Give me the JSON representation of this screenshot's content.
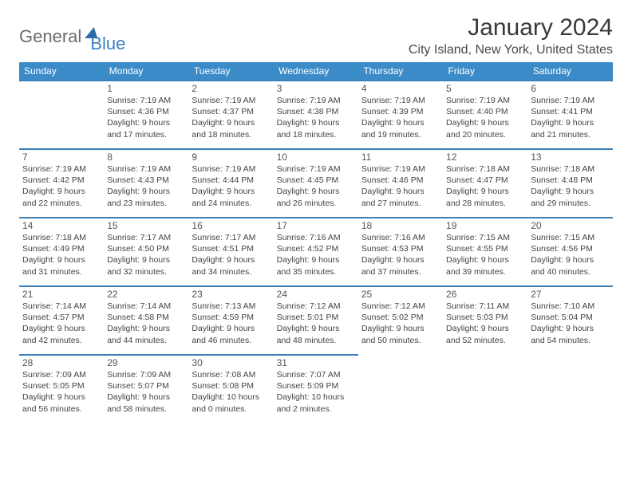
{
  "logo": {
    "word1": "General",
    "word2": "Blue"
  },
  "title": "January 2024",
  "location": "City Island, New York, United States",
  "colors": {
    "header_bg": "#3b8bc9",
    "header_text": "#ffffff",
    "cell_border": "#3b7fb8",
    "text": "#444444",
    "title_text": "#3a3a3a",
    "logo_gray": "#6b6b6b",
    "logo_blue": "#3b7fc4"
  },
  "day_headers": [
    "Sunday",
    "Monday",
    "Tuesday",
    "Wednesday",
    "Thursday",
    "Friday",
    "Saturday"
  ],
  "weeks": [
    [
      null,
      {
        "n": "1",
        "sr": "Sunrise: 7:19 AM",
        "ss": "Sunset: 4:36 PM",
        "d1": "Daylight: 9 hours",
        "d2": "and 17 minutes."
      },
      {
        "n": "2",
        "sr": "Sunrise: 7:19 AM",
        "ss": "Sunset: 4:37 PM",
        "d1": "Daylight: 9 hours",
        "d2": "and 18 minutes."
      },
      {
        "n": "3",
        "sr": "Sunrise: 7:19 AM",
        "ss": "Sunset: 4:38 PM",
        "d1": "Daylight: 9 hours",
        "d2": "and 18 minutes."
      },
      {
        "n": "4",
        "sr": "Sunrise: 7:19 AM",
        "ss": "Sunset: 4:39 PM",
        "d1": "Daylight: 9 hours",
        "d2": "and 19 minutes."
      },
      {
        "n": "5",
        "sr": "Sunrise: 7:19 AM",
        "ss": "Sunset: 4:40 PM",
        "d1": "Daylight: 9 hours",
        "d2": "and 20 minutes."
      },
      {
        "n": "6",
        "sr": "Sunrise: 7:19 AM",
        "ss": "Sunset: 4:41 PM",
        "d1": "Daylight: 9 hours",
        "d2": "and 21 minutes."
      }
    ],
    [
      {
        "n": "7",
        "sr": "Sunrise: 7:19 AM",
        "ss": "Sunset: 4:42 PM",
        "d1": "Daylight: 9 hours",
        "d2": "and 22 minutes."
      },
      {
        "n": "8",
        "sr": "Sunrise: 7:19 AM",
        "ss": "Sunset: 4:43 PM",
        "d1": "Daylight: 9 hours",
        "d2": "and 23 minutes."
      },
      {
        "n": "9",
        "sr": "Sunrise: 7:19 AM",
        "ss": "Sunset: 4:44 PM",
        "d1": "Daylight: 9 hours",
        "d2": "and 24 minutes."
      },
      {
        "n": "10",
        "sr": "Sunrise: 7:19 AM",
        "ss": "Sunset: 4:45 PM",
        "d1": "Daylight: 9 hours",
        "d2": "and 26 minutes."
      },
      {
        "n": "11",
        "sr": "Sunrise: 7:19 AM",
        "ss": "Sunset: 4:46 PM",
        "d1": "Daylight: 9 hours",
        "d2": "and 27 minutes."
      },
      {
        "n": "12",
        "sr": "Sunrise: 7:18 AM",
        "ss": "Sunset: 4:47 PM",
        "d1": "Daylight: 9 hours",
        "d2": "and 28 minutes."
      },
      {
        "n": "13",
        "sr": "Sunrise: 7:18 AM",
        "ss": "Sunset: 4:48 PM",
        "d1": "Daylight: 9 hours",
        "d2": "and 29 minutes."
      }
    ],
    [
      {
        "n": "14",
        "sr": "Sunrise: 7:18 AM",
        "ss": "Sunset: 4:49 PM",
        "d1": "Daylight: 9 hours",
        "d2": "and 31 minutes."
      },
      {
        "n": "15",
        "sr": "Sunrise: 7:17 AM",
        "ss": "Sunset: 4:50 PM",
        "d1": "Daylight: 9 hours",
        "d2": "and 32 minutes."
      },
      {
        "n": "16",
        "sr": "Sunrise: 7:17 AM",
        "ss": "Sunset: 4:51 PM",
        "d1": "Daylight: 9 hours",
        "d2": "and 34 minutes."
      },
      {
        "n": "17",
        "sr": "Sunrise: 7:16 AM",
        "ss": "Sunset: 4:52 PM",
        "d1": "Daylight: 9 hours",
        "d2": "and 35 minutes."
      },
      {
        "n": "18",
        "sr": "Sunrise: 7:16 AM",
        "ss": "Sunset: 4:53 PM",
        "d1": "Daylight: 9 hours",
        "d2": "and 37 minutes."
      },
      {
        "n": "19",
        "sr": "Sunrise: 7:15 AM",
        "ss": "Sunset: 4:55 PM",
        "d1": "Daylight: 9 hours",
        "d2": "and 39 minutes."
      },
      {
        "n": "20",
        "sr": "Sunrise: 7:15 AM",
        "ss": "Sunset: 4:56 PM",
        "d1": "Daylight: 9 hours",
        "d2": "and 40 minutes."
      }
    ],
    [
      {
        "n": "21",
        "sr": "Sunrise: 7:14 AM",
        "ss": "Sunset: 4:57 PM",
        "d1": "Daylight: 9 hours",
        "d2": "and 42 minutes."
      },
      {
        "n": "22",
        "sr": "Sunrise: 7:14 AM",
        "ss": "Sunset: 4:58 PM",
        "d1": "Daylight: 9 hours",
        "d2": "and 44 minutes."
      },
      {
        "n": "23",
        "sr": "Sunrise: 7:13 AM",
        "ss": "Sunset: 4:59 PM",
        "d1": "Daylight: 9 hours",
        "d2": "and 46 minutes."
      },
      {
        "n": "24",
        "sr": "Sunrise: 7:12 AM",
        "ss": "Sunset: 5:01 PM",
        "d1": "Daylight: 9 hours",
        "d2": "and 48 minutes."
      },
      {
        "n": "25",
        "sr": "Sunrise: 7:12 AM",
        "ss": "Sunset: 5:02 PM",
        "d1": "Daylight: 9 hours",
        "d2": "and 50 minutes."
      },
      {
        "n": "26",
        "sr": "Sunrise: 7:11 AM",
        "ss": "Sunset: 5:03 PM",
        "d1": "Daylight: 9 hours",
        "d2": "and 52 minutes."
      },
      {
        "n": "27",
        "sr": "Sunrise: 7:10 AM",
        "ss": "Sunset: 5:04 PM",
        "d1": "Daylight: 9 hours",
        "d2": "and 54 minutes."
      }
    ],
    [
      {
        "n": "28",
        "sr": "Sunrise: 7:09 AM",
        "ss": "Sunset: 5:05 PM",
        "d1": "Daylight: 9 hours",
        "d2": "and 56 minutes."
      },
      {
        "n": "29",
        "sr": "Sunrise: 7:09 AM",
        "ss": "Sunset: 5:07 PM",
        "d1": "Daylight: 9 hours",
        "d2": "and 58 minutes."
      },
      {
        "n": "30",
        "sr": "Sunrise: 7:08 AM",
        "ss": "Sunset: 5:08 PM",
        "d1": "Daylight: 10 hours",
        "d2": "and 0 minutes."
      },
      {
        "n": "31",
        "sr": "Sunrise: 7:07 AM",
        "ss": "Sunset: 5:09 PM",
        "d1": "Daylight: 10 hours",
        "d2": "and 2 minutes."
      },
      null,
      null,
      null
    ]
  ]
}
